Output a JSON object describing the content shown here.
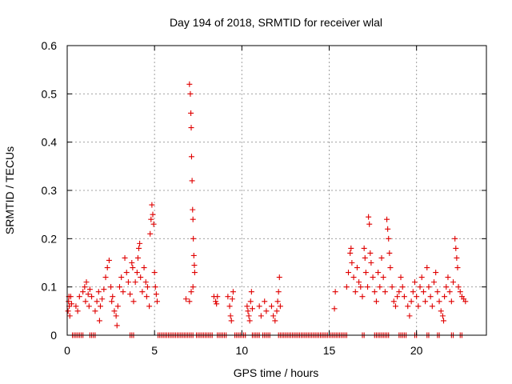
{
  "chart_data": {
    "type": "scatter",
    "title": "Day 194 of 2018, SRMTID for receiver wlal",
    "xlabel": "GPS time / hours",
    "ylabel": "SRMTID / TECUs",
    "xlim": [
      0,
      24
    ],
    "ylim": [
      0,
      0.6
    ],
    "x_ticks": [
      0,
      5,
      10,
      15,
      20
    ],
    "x_tick_labels": [
      "0",
      "5",
      "10",
      "15",
      "20"
    ],
    "y_ticks": [
      0,
      0.1,
      0.2,
      0.3,
      0.4,
      0.5,
      0.6
    ],
    "y_tick_labels": [
      "0",
      "0.1",
      "0.2",
      "0.3",
      "0.4",
      "0.5",
      "0.6"
    ],
    "grid": true,
    "marker": "+",
    "color": "#e00000",
    "series": [
      {
        "name": "SRMTID",
        "points": [
          [
            0.05,
            0.05
          ],
          [
            0.08,
            0.07
          ],
          [
            0.1,
            0.08
          ],
          [
            0.12,
            0.06
          ],
          [
            0.15,
            0.04
          ],
          [
            0.2,
            0.08
          ],
          [
            0.25,
            0.065
          ],
          [
            0.5,
            0.06
          ],
          [
            0.6,
            0.05
          ],
          [
            0.7,
            0.08
          ],
          [
            0.9,
            0.09
          ],
          [
            1.0,
            0.1
          ],
          [
            1.05,
            0.07
          ],
          [
            1.1,
            0.11
          ],
          [
            1.2,
            0.085
          ],
          [
            1.25,
            0.06
          ],
          [
            1.3,
            0.095
          ],
          [
            1.4,
            0.08
          ],
          [
            1.6,
            0.05
          ],
          [
            1.7,
            0.07
          ],
          [
            1.8,
            0.09
          ],
          [
            1.85,
            0.03
          ],
          [
            1.9,
            0.06
          ],
          [
            2.0,
            0.075
          ],
          [
            2.1,
            0.095
          ],
          [
            2.2,
            0.12
          ],
          [
            2.3,
            0.14
          ],
          [
            2.4,
            0.155
          ],
          [
            2.5,
            0.1
          ],
          [
            2.55,
            0.07
          ],
          [
            2.6,
            0.08
          ],
          [
            2.7,
            0.05
          ],
          [
            2.8,
            0.04
          ],
          [
            2.85,
            0.02
          ],
          [
            2.9,
            0.06
          ],
          [
            3.0,
            0.1
          ],
          [
            3.1,
            0.12
          ],
          [
            3.2,
            0.09
          ],
          [
            3.3,
            0.16
          ],
          [
            3.4,
            0.13
          ],
          [
            3.5,
            0.11
          ],
          [
            3.6,
            0.085
          ],
          [
            3.7,
            0.15
          ],
          [
            3.75,
            0.14
          ],
          [
            3.8,
            0.07
          ],
          [
            3.9,
            0.11
          ],
          [
            4.0,
            0.13
          ],
          [
            4.05,
            0.16
          ],
          [
            4.1,
            0.18
          ],
          [
            4.15,
            0.19
          ],
          [
            4.2,
            0.12
          ],
          [
            4.3,
            0.09
          ],
          [
            4.4,
            0.14
          ],
          [
            4.5,
            0.11
          ],
          [
            4.55,
            0.08
          ],
          [
            4.6,
            0.1
          ],
          [
            4.7,
            0.06
          ],
          [
            4.75,
            0.21
          ],
          [
            4.8,
            0.24
          ],
          [
            4.85,
            0.27
          ],
          [
            4.9,
            0.25
          ],
          [
            4.95,
            0.23
          ],
          [
            5.0,
            0.13
          ],
          [
            5.05,
            0.1
          ],
          [
            5.1,
            0.085
          ],
          [
            5.15,
            0.07
          ],
          [
            7.0,
            0.52
          ],
          [
            7.05,
            0.5
          ],
          [
            7.08,
            0.46
          ],
          [
            7.1,
            0.43
          ],
          [
            7.12,
            0.37
          ],
          [
            7.15,
            0.32
          ],
          [
            7.18,
            0.26
          ],
          [
            7.2,
            0.24
          ],
          [
            7.22,
            0.2
          ],
          [
            7.25,
            0.165
          ],
          [
            7.28,
            0.145
          ],
          [
            7.3,
            0.13
          ],
          [
            7.2,
            0.1
          ],
          [
            7.1,
            0.09
          ],
          [
            7.0,
            0.07
          ],
          [
            6.8,
            0.075
          ],
          [
            8.4,
            0.08
          ],
          [
            8.5,
            0.07
          ],
          [
            8.55,
            0.065
          ],
          [
            8.6,
            0.08
          ],
          [
            9.2,
            0.08
          ],
          [
            9.3,
            0.06
          ],
          [
            9.35,
            0.04
          ],
          [
            9.4,
            0.03
          ],
          [
            9.45,
            0.075
          ],
          [
            9.5,
            0.09
          ],
          [
            10.3,
            0.06
          ],
          [
            10.35,
            0.05
          ],
          [
            10.4,
            0.04
          ],
          [
            10.45,
            0.03
          ],
          [
            10.5,
            0.07
          ],
          [
            10.55,
            0.09
          ],
          [
            10.6,
            0.055
          ],
          [
            11.0,
            0.06
          ],
          [
            11.1,
            0.04
          ],
          [
            11.3,
            0.07
          ],
          [
            11.4,
            0.05
          ],
          [
            11.7,
            0.06
          ],
          [
            11.8,
            0.04
          ],
          [
            11.9,
            0.03
          ],
          [
            12.0,
            0.05
          ],
          [
            12.05,
            0.07
          ],
          [
            12.1,
            0.09
          ],
          [
            12.15,
            0.12
          ],
          [
            12.2,
            0.06
          ],
          [
            15.3,
            0.055
          ],
          [
            15.35,
            0.09
          ],
          [
            16.0,
            0.1
          ],
          [
            16.1,
            0.13
          ],
          [
            16.2,
            0.17
          ],
          [
            16.25,
            0.18
          ],
          [
            16.3,
            0.15
          ],
          [
            16.4,
            0.12
          ],
          [
            16.5,
            0.09
          ],
          [
            16.6,
            0.14
          ],
          [
            16.7,
            0.11
          ],
          [
            16.8,
            0.1
          ],
          [
            16.9,
            0.08
          ],
          [
            17.0,
            0.18
          ],
          [
            17.05,
            0.16
          ],
          [
            17.1,
            0.13
          ],
          [
            17.2,
            0.1
          ],
          [
            17.25,
            0.245
          ],
          [
            17.3,
            0.23
          ],
          [
            17.35,
            0.17
          ],
          [
            17.4,
            0.15
          ],
          [
            17.5,
            0.12
          ],
          [
            17.6,
            0.09
          ],
          [
            17.7,
            0.07
          ],
          [
            17.8,
            0.13
          ],
          [
            17.9,
            0.1
          ],
          [
            18.0,
            0.16
          ],
          [
            18.1,
            0.12
          ],
          [
            18.2,
            0.09
          ],
          [
            18.3,
            0.24
          ],
          [
            18.35,
            0.22
          ],
          [
            18.4,
            0.2
          ],
          [
            18.45,
            0.17
          ],
          [
            18.5,
            0.14
          ],
          [
            18.6,
            0.1
          ],
          [
            18.7,
            0.07
          ],
          [
            18.8,
            0.06
          ],
          [
            18.9,
            0.08
          ],
          [
            19.0,
            0.09
          ],
          [
            19.1,
            0.12
          ],
          [
            19.2,
            0.1
          ],
          [
            19.3,
            0.08
          ],
          [
            19.5,
            0.06
          ],
          [
            19.6,
            0.04
          ],
          [
            19.7,
            0.07
          ],
          [
            19.8,
            0.09
          ],
          [
            19.9,
            0.11
          ],
          [
            20.0,
            0.08
          ],
          [
            20.1,
            0.06
          ],
          [
            20.2,
            0.1
          ],
          [
            20.3,
            0.12
          ],
          [
            20.4,
            0.09
          ],
          [
            20.5,
            0.07
          ],
          [
            20.6,
            0.14
          ],
          [
            20.7,
            0.1
          ],
          [
            20.8,
            0.08
          ],
          [
            20.9,
            0.06
          ],
          [
            21.0,
            0.11
          ],
          [
            21.1,
            0.13
          ],
          [
            21.2,
            0.09
          ],
          [
            21.3,
            0.07
          ],
          [
            21.4,
            0.05
          ],
          [
            21.5,
            0.04
          ],
          [
            21.55,
            0.03
          ],
          [
            21.6,
            0.08
          ],
          [
            21.7,
            0.1
          ],
          [
            21.8,
            0.12
          ],
          [
            21.9,
            0.09
          ],
          [
            22.0,
            0.07
          ],
          [
            22.1,
            0.11
          ],
          [
            22.2,
            0.2
          ],
          [
            22.25,
            0.18
          ],
          [
            22.3,
            0.16
          ],
          [
            22.35,
            0.14
          ],
          [
            22.4,
            0.1
          ],
          [
            22.5,
            0.09
          ],
          [
            22.6,
            0.08
          ],
          [
            22.7,
            0.075
          ],
          [
            22.8,
            0.07
          ]
        ],
        "zero_segments": [
          [
            0.3,
            0.9
          ],
          [
            1.3,
            1.6
          ],
          [
            3.6,
            3.8
          ],
          [
            5.2,
            7.2
          ],
          [
            7.4,
            8.3
          ],
          [
            8.6,
            9.1
          ],
          [
            9.6,
            10.2
          ],
          [
            10.6,
            11.0
          ],
          [
            11.2,
            11.6
          ],
          [
            12.1,
            16.0
          ],
          [
            16.9,
            17.0
          ],
          [
            17.6,
            17.9
          ],
          [
            18.0,
            18.4
          ],
          [
            19.0,
            19.4
          ],
          [
            19.9,
            20.0
          ],
          [
            20.6,
            20.7
          ],
          [
            21.2,
            21.3
          ],
          [
            22.0,
            22.1
          ],
          [
            22.5,
            22.6
          ]
        ]
      }
    ]
  }
}
